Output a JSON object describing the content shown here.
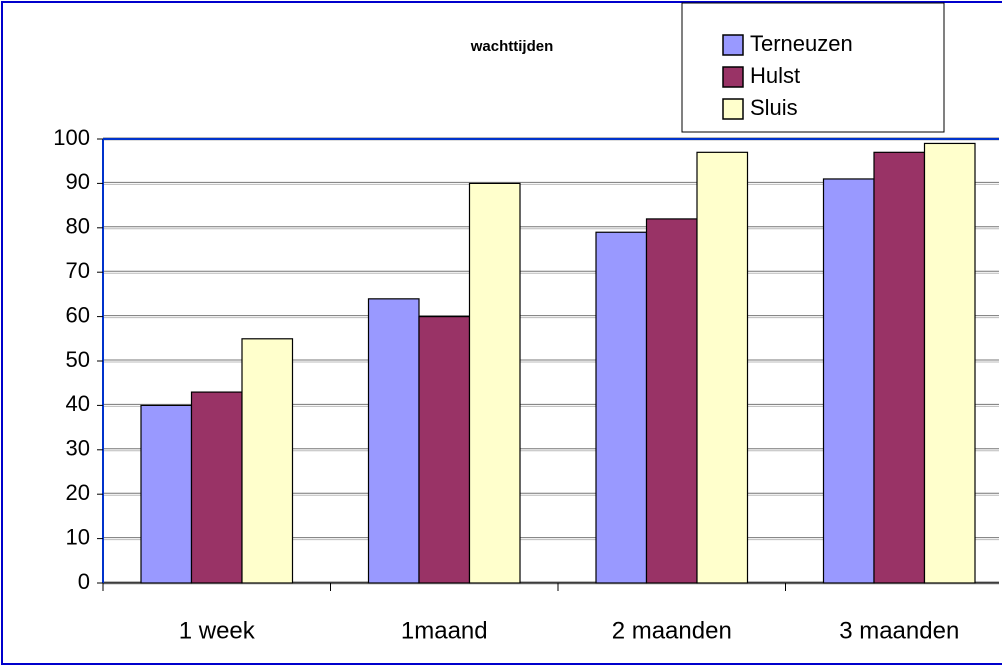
{
  "chart_data": {
    "type": "bar",
    "title": "wachttijden",
    "categories": [
      "1 week",
      "1maand",
      "2 maanden",
      "3 maanden"
    ],
    "series": [
      {
        "name": "Terneuzen",
        "color": "#9999ff",
        "values": [
          40,
          64,
          79,
          91
        ]
      },
      {
        "name": "Hulst",
        "color": "#993366",
        "values": [
          43,
          60,
          82,
          97
        ]
      },
      {
        "name": "Sluis",
        "color": "#ffffcc",
        "values": [
          55,
          90,
          97,
          99
        ]
      }
    ],
    "ylim": [
      0,
      100
    ],
    "yticks": [
      0,
      10,
      20,
      30,
      40,
      50,
      60,
      70,
      80,
      90,
      100
    ],
    "grid": true
  }
}
